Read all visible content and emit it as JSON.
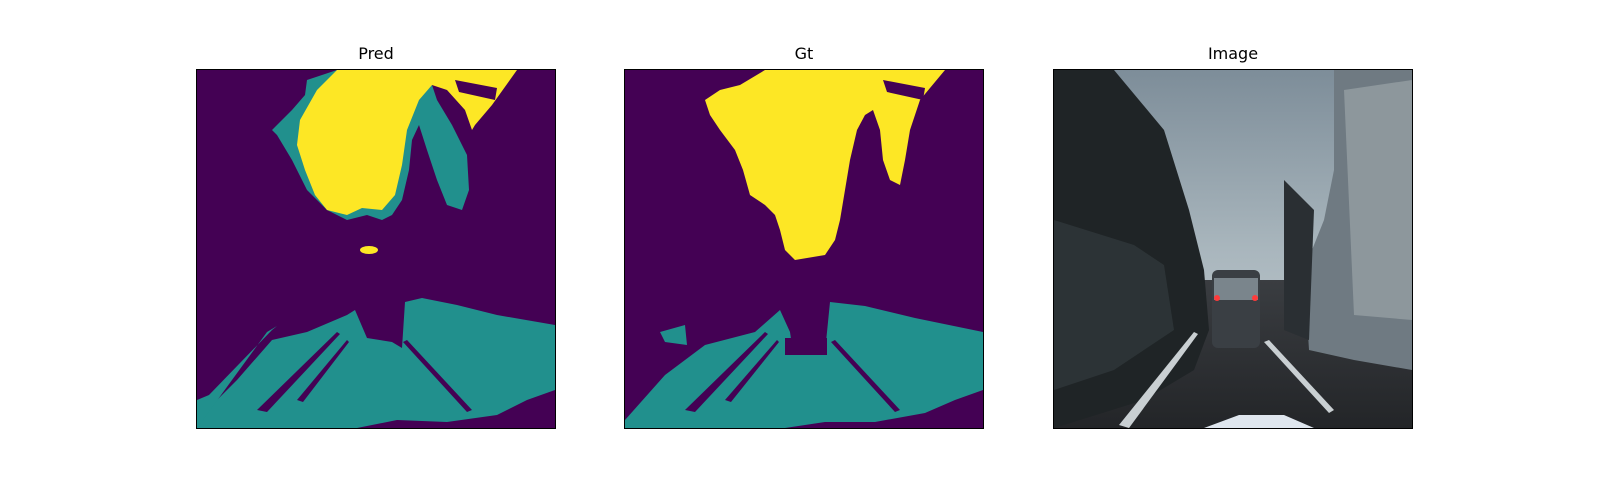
{
  "figure": {
    "panels": [
      {
        "title": "Pred"
      },
      {
        "title": "Gt"
      },
      {
        "title": "Image"
      }
    ]
  },
  "colors": {
    "background_class": "#440154",
    "road_class": "#21908d",
    "sky_class": "#fde725",
    "photo_sky": "#a9b6bd",
    "photo_road": "#2f3236"
  }
}
